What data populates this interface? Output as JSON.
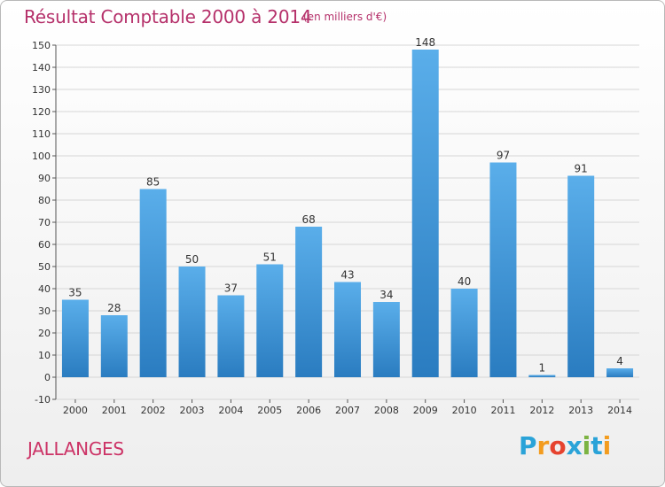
{
  "title": "Résultat Comptable 2000 à 2014",
  "subtitle": "(en milliers d'€)",
  "location": "JALLANGES",
  "logo": {
    "letters": [
      "P",
      "r",
      "o",
      "x",
      "i",
      "t",
      "i"
    ],
    "colors": [
      "#2aa3d8",
      "#f39c1f",
      "#e6432f",
      "#2aa3d8",
      "#7cb342",
      "#2aa3d8",
      "#f39c1f"
    ]
  },
  "colors": {
    "bar_top": "#5aaeea",
    "bar_bottom": "#2a7cc0",
    "title": "#b5306a",
    "location": "#cc3366",
    "grid": "#d6d6d6"
  },
  "chart_data": {
    "type": "bar",
    "categories": [
      "2000",
      "2001",
      "2002",
      "2003",
      "2004",
      "2005",
      "2006",
      "2007",
      "2008",
      "2009",
      "2010",
      "2011",
      "2012",
      "2013",
      "2014"
    ],
    "values": [
      35,
      28,
      85,
      50,
      37,
      51,
      68,
      43,
      34,
      148,
      40,
      97,
      1,
      91,
      4
    ],
    "data_labels": [
      "35",
      "28",
      "85",
      "50",
      "37",
      "51",
      "68",
      "43",
      "34",
      "148",
      "40",
      "97",
      "1",
      "91",
      "4"
    ],
    "title": "Résultat Comptable 2000 à 2014",
    "subtitle": "(en milliers d'€)",
    "ylim": [
      -10,
      150
    ],
    "yticks": [
      -10,
      0,
      10,
      20,
      30,
      40,
      50,
      60,
      70,
      80,
      90,
      100,
      110,
      120,
      130,
      140,
      150
    ],
    "grid": true
  }
}
